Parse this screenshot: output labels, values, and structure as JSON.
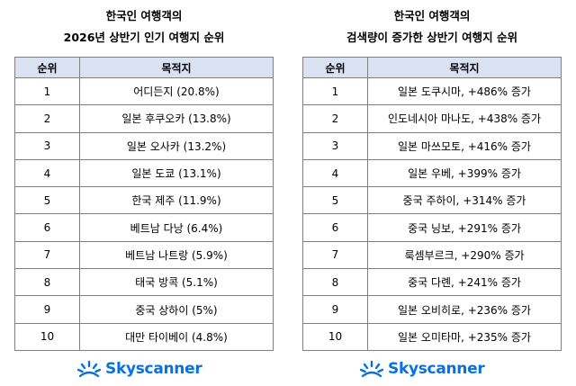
{
  "left": {
    "title_line1": "한국인 여행객의",
    "title_line2": "2026년 상반기 인기 여행지 순위",
    "headers": [
      "순위",
      "목적지"
    ],
    "rows": [
      [
        "1",
        "어디든지 (20.8%)"
      ],
      [
        "2",
        "일본 후쿠오카 (13.8%)"
      ],
      [
        "3",
        "일본 오사카 (13.2%)"
      ],
      [
        "4",
        "일본 도쿄 (13.1%)"
      ],
      [
        "5",
        "한국 제주 (11.9%)"
      ],
      [
        "6",
        "베트남 다낭 (6.4%)"
      ],
      [
        "7",
        "베트남 나트랑 (5.9%)"
      ],
      [
        "8",
        "태국 방콕 (5.1%)"
      ],
      [
        "9",
        "중국 상하이 (5%)"
      ],
      [
        "10",
        "대만 타이베이 (4.8%)"
      ]
    ],
    "logo_text": "Skyscanner"
  },
  "right": {
    "title_line1": "한국인 여행객의",
    "title_line2": "검색량이 증가한 상반기 여행지 순위",
    "headers": [
      "순위",
      "목적지"
    ],
    "rows": [
      [
        "1",
        "일본 도쿠시마, +486% 증가"
      ],
      [
        "2",
        "인도네시아 마나도, +438% 증가"
      ],
      [
        "3",
        "일본 마쓰모토, +416% 증가"
      ],
      [
        "4",
        "일본 우베, +399% 증가"
      ],
      [
        "5",
        "중국 주하이, +314% 증가"
      ],
      [
        "6",
        "중국 닝보, +291% 증가"
      ],
      [
        "7",
        "룩셈부르크, +290% 증가"
      ],
      [
        "8",
        "중국 다롄, +241% 증가"
      ],
      [
        "9",
        "일본 오비히로, +236% 증가"
      ],
      [
        "10",
        "일본 오미타마, +235% 증가"
      ]
    ],
    "logo_text": "Skyscanner"
  },
  "colors": {
    "header_bg": "#d9e1f2",
    "border": "#7f7f7f",
    "brand": "#0770e3"
  }
}
